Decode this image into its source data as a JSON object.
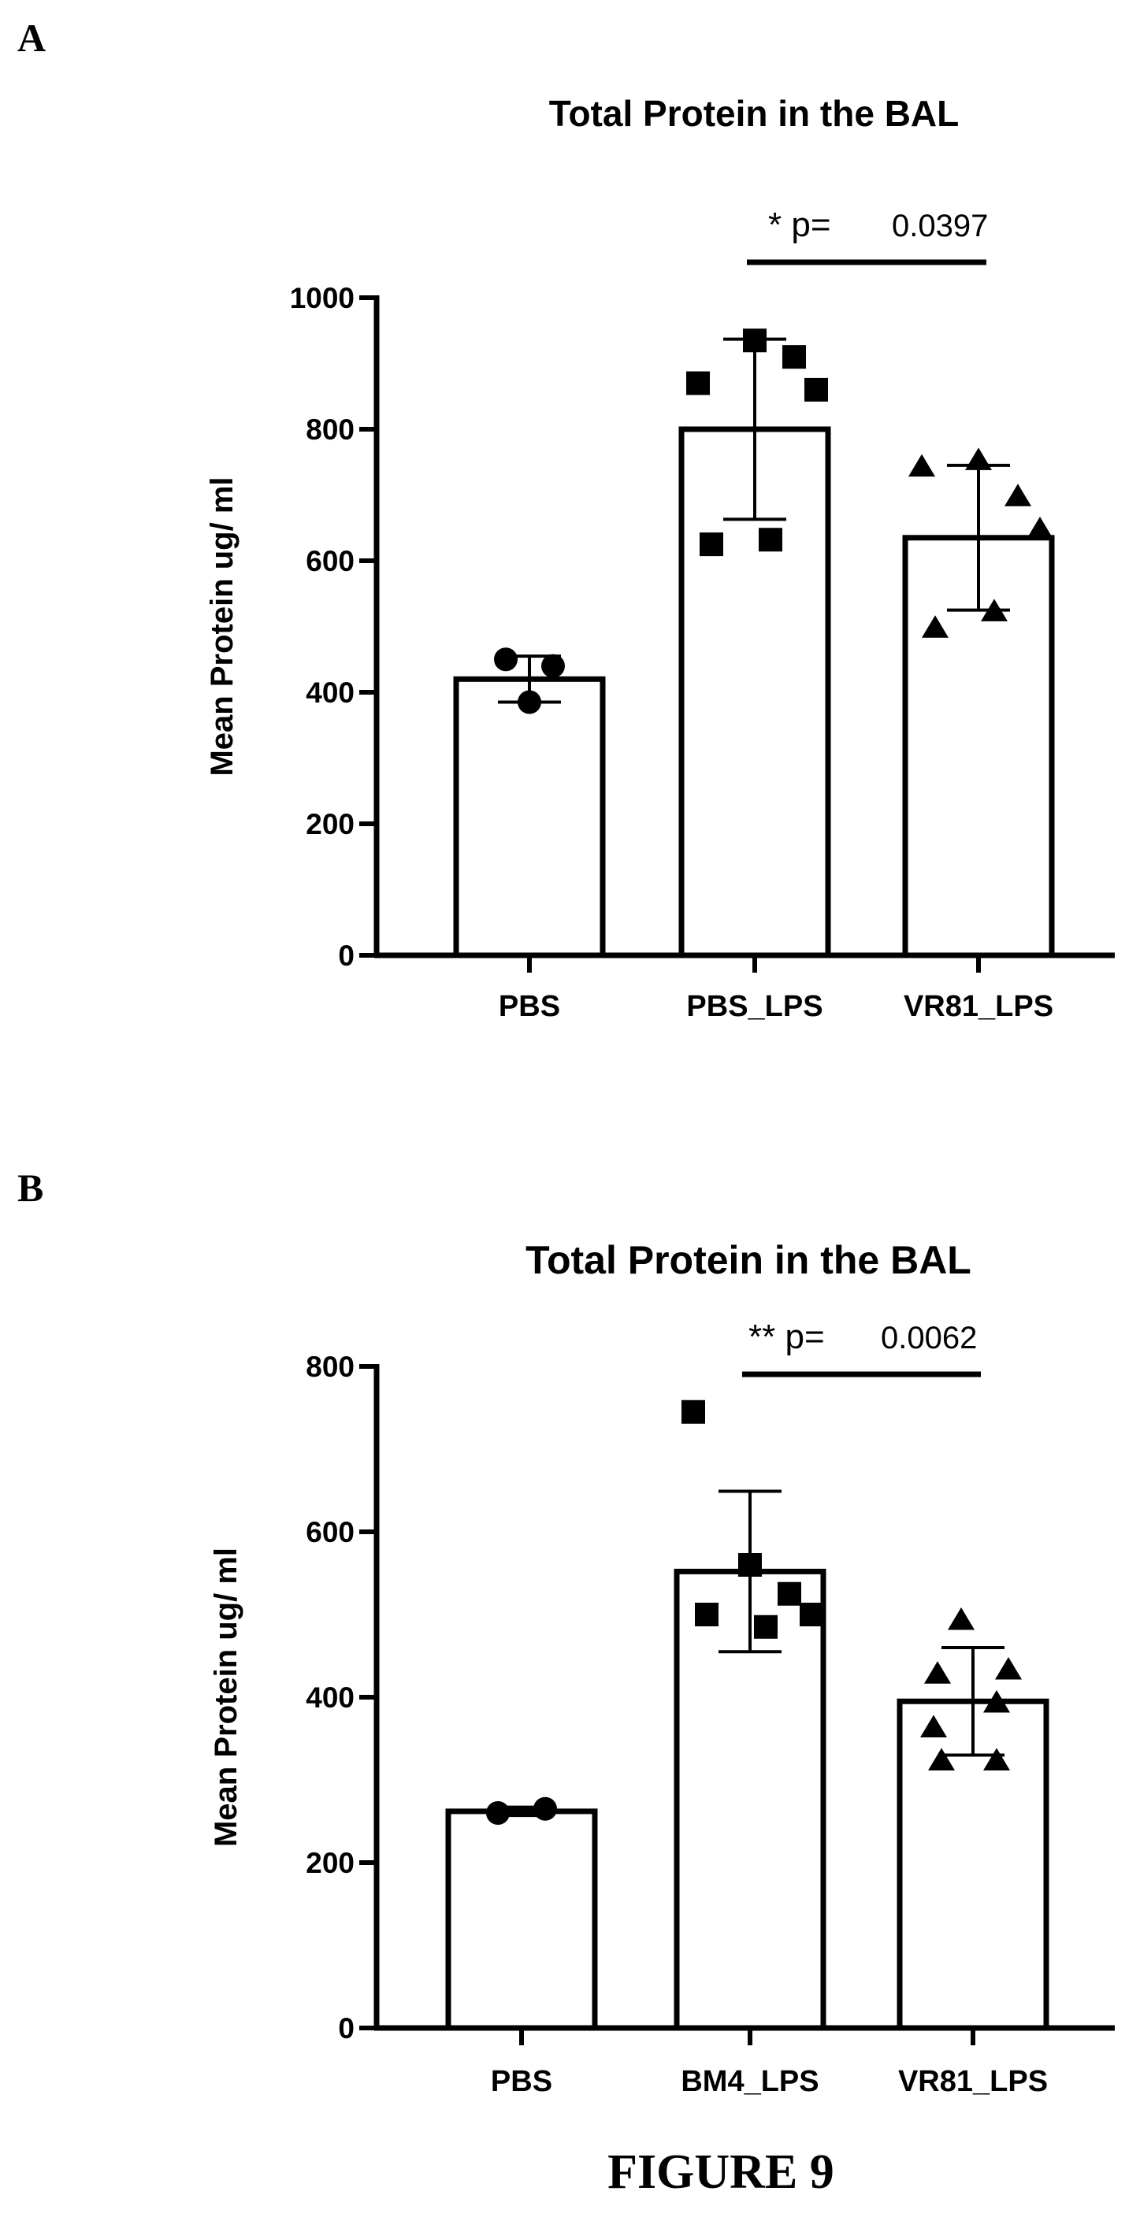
{
  "figure_caption": "FIGURE 9",
  "chart_data": [
    {
      "panel": "A",
      "type": "bar",
      "title": "Total Protein in the BAL",
      "xlabel": "",
      "ylabel": "Mean Protein ug/ ml",
      "ylim": [
        0,
        1000
      ],
      "yticks": [
        0,
        200,
        400,
        600,
        800,
        1000
      ],
      "categories": [
        "PBS",
        "PBS_LPS",
        "VR81_LPS"
      ],
      "values": [
        420,
        800,
        635
      ],
      "error": [
        35,
        137,
        110
      ],
      "marker_shapes": [
        "circle",
        "square",
        "triangle"
      ],
      "points": [
        [
          450,
          440,
          385
        ],
        [
          870,
          935,
          910,
          860,
          625,
          632
        ],
        [
          745,
          755,
          700,
          650,
          500,
          525
        ]
      ],
      "grid": false,
      "legend": "none",
      "significance": {
        "label": "* p=",
        "value": "0.0397",
        "between": [
          "PBS_LPS",
          "VR81_LPS"
        ]
      }
    },
    {
      "panel": "B",
      "type": "bar",
      "title": "Total Protein in the BAL",
      "xlabel": "",
      "ylabel": "Mean Protein ug/ ml",
      "ylim": [
        0,
        800
      ],
      "yticks": [
        0,
        200,
        400,
        600,
        800
      ],
      "categories": [
        "PBS",
        "BM4_LPS",
        "VR81_LPS"
      ],
      "values": [
        262,
        552,
        395
      ],
      "error": [
        5,
        97,
        65
      ],
      "marker_shapes": [
        "circle",
        "square",
        "triangle"
      ],
      "points": [
        [
          260,
          265
        ],
        [
          745,
          560,
          525,
          500,
          500,
          485
        ],
        [
          495,
          435,
          430,
          395,
          365,
          325,
          325
        ]
      ],
      "grid": false,
      "legend": "none",
      "significance": {
        "label": "** p=",
        "value": "0.0062",
        "between": [
          "BM4_LPS",
          "VR81_LPS"
        ]
      }
    }
  ]
}
